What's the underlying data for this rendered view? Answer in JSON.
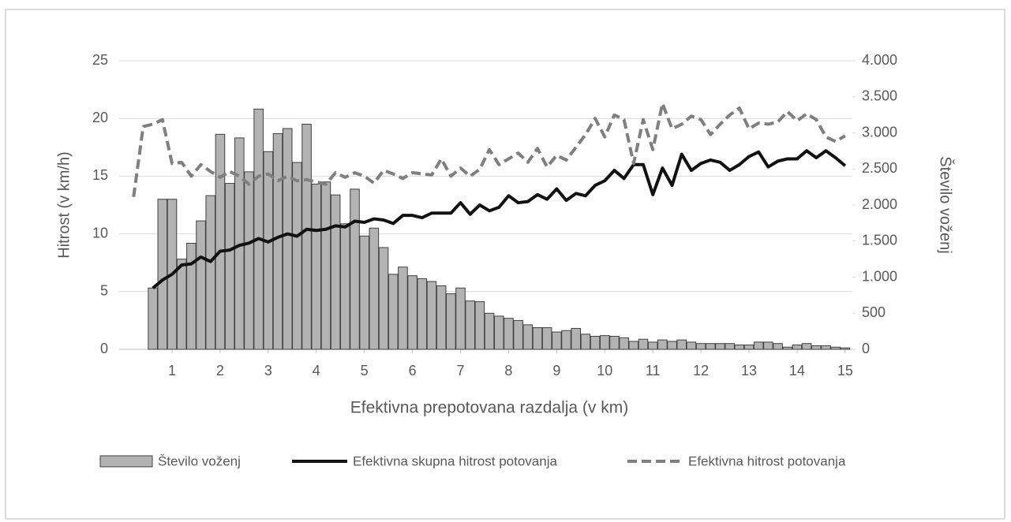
{
  "chart_data": {
    "type": "bar-line",
    "xlabel": "Efektivna prepotovana razdalja (v km)",
    "ylabel": "Hitrost (v km/h)",
    "y2label": "Število voženj",
    "x": [
      0.2,
      0.4,
      0.6,
      0.8,
      1.0,
      1.2,
      1.4,
      1.6,
      1.8,
      2.0,
      2.2,
      2.4,
      2.6,
      2.8,
      3.0,
      3.2,
      3.4,
      3.6,
      3.8,
      4.0,
      4.2,
      4.4,
      4.6,
      4.8,
      5.0,
      5.2,
      5.4,
      5.6,
      5.8,
      6.0,
      6.2,
      6.4,
      6.6,
      6.8,
      7.0,
      7.2,
      7.4,
      7.6,
      7.8,
      8.0,
      8.2,
      8.4,
      8.6,
      8.8,
      9.0,
      9.2,
      9.4,
      9.6,
      9.8,
      10.0,
      10.2,
      10.4,
      10.6,
      10.8,
      11.0,
      11.2,
      11.4,
      11.6,
      11.8,
      12.0,
      12.2,
      12.4,
      12.6,
      12.8,
      13.0,
      13.2,
      13.4,
      13.6,
      13.8,
      14.0,
      14.2,
      14.4,
      14.6,
      14.8,
      15.0
    ],
    "series": [
      {
        "name": "Število voženj",
        "type": "bar",
        "axis": "y2",
        "color": "#b3b3b3",
        "values": [
          null,
          null,
          850,
          2080,
          2080,
          1250,
          1470,
          1780,
          2130,
          2980,
          2300,
          2930,
          2460,
          3330,
          2740,
          2990,
          3060,
          2590,
          3120,
          2290,
          2320,
          2140,
          1740,
          2220,
          1570,
          1680,
          1410,
          1040,
          1140,
          1020,
          980,
          940,
          880,
          770,
          850,
          670,
          660,
          500,
          460,
          430,
          400,
          340,
          300,
          300,
          240,
          260,
          290,
          210,
          180,
          190,
          180,
          160,
          110,
          140,
          100,
          130,
          110,
          130,
          100,
          80,
          80,
          80,
          80,
          60,
          60,
          100,
          100,
          80,
          30,
          60,
          80,
          50,
          50,
          30,
          20
        ]
      },
      {
        "name": "Efektivna skupna hitrost potovanja",
        "type": "line",
        "color": "#111111",
        "dashed": false,
        "values": [
          null,
          null,
          5.3,
          6.0,
          6.5,
          7.3,
          7.4,
          8.0,
          7.6,
          8.5,
          8.6,
          9.0,
          9.2,
          9.6,
          9.3,
          9.7,
          10.0,
          9.8,
          10.4,
          10.3,
          10.4,
          10.7,
          10.6,
          11.1,
          11.0,
          11.3,
          11.2,
          10.9,
          11.6,
          11.6,
          11.4,
          11.8,
          11.8,
          11.8,
          12.7,
          11.7,
          12.5,
          12.0,
          12.3,
          13.3,
          12.7,
          12.8,
          13.4,
          13.0,
          13.9,
          12.9,
          13.5,
          13.3,
          14.2,
          14.6,
          15.5,
          14.8,
          16.0,
          16.0,
          13.4,
          15.7,
          14.2,
          16.9,
          15.5,
          16.1,
          16.4,
          16.2,
          15.5,
          16.0,
          16.7,
          17.1,
          15.8,
          16.3,
          16.5,
          16.5,
          17.2,
          16.6,
          17.2,
          16.6,
          15.9
        ]
      },
      {
        "name": "Efektivna hitrost potovanja",
        "type": "line",
        "color": "#7f7f7f",
        "dashed": true,
        "values": [
          13.2,
          19.3,
          19.5,
          19.9,
          16.1,
          16.2,
          15.0,
          16.0,
          15.4,
          14.9,
          15.4,
          15.0,
          14.3,
          15.0,
          15.2,
          14.6,
          15.0,
          14.6,
          14.7,
          14.5,
          14.3,
          15.3,
          14.9,
          15.3,
          15.0,
          14.4,
          15.5,
          15.2,
          14.8,
          15.3,
          15.2,
          15.1,
          16.5,
          15.0,
          15.7,
          15.0,
          15.6,
          17.3,
          16.0,
          16.5,
          17.0,
          16.2,
          17.4,
          15.8,
          16.8,
          16.4,
          17.5,
          18.6,
          20.0,
          18.4,
          20.3,
          19.9,
          16.1,
          19.9,
          17.3,
          21.3,
          19.1,
          19.5,
          20.2,
          19.9,
          18.6,
          19.5,
          20.3,
          20.9,
          19.1,
          19.6,
          19.5,
          19.7,
          20.6,
          19.8,
          20.4,
          19.9,
          18.4,
          18.0,
          18.5
        ]
      }
    ],
    "xlim": [
      -0.1,
      15.15
    ],
    "xticks": [
      1,
      2,
      3,
      4,
      5,
      6,
      7,
      8,
      9,
      10,
      11,
      12,
      13,
      14,
      15
    ],
    "ylim": [
      0,
      25
    ],
    "yticks": [
      0,
      5,
      10,
      15,
      20,
      25
    ],
    "y2lim": [
      0,
      4000
    ],
    "y2ticks": [
      0,
      500,
      {
        "value": 1000,
        "label": "1.000"
      },
      {
        "value": 1500,
        "label": "1.500"
      },
      {
        "value": 2000,
        "label": "2.000"
      },
      {
        "value": 2500,
        "label": "2.500"
      },
      {
        "value": 3000,
        "label": "3.000"
      },
      {
        "value": 3500,
        "label": "3.500"
      },
      {
        "value": 4000,
        "label": "4.000"
      }
    ],
    "grid": true,
    "legend": "bottom"
  }
}
